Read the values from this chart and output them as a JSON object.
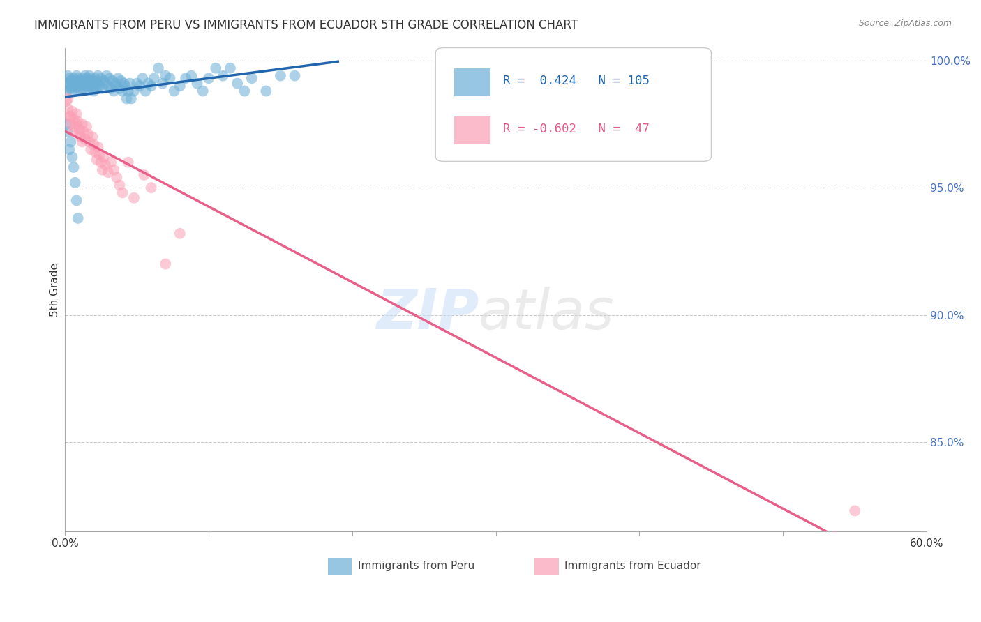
{
  "title": "IMMIGRANTS FROM PERU VS IMMIGRANTS FROM ECUADOR 5TH GRADE CORRELATION CHART",
  "source": "Source: ZipAtlas.com",
  "ylabel": "5th Grade",
  "xlim": [
    0.0,
    0.6
  ],
  "ylim": [
    0.815,
    1.005
  ],
  "peru_R": 0.424,
  "peru_N": 105,
  "ecuador_R": -0.602,
  "ecuador_N": 47,
  "peru_color": "#6baed6",
  "ecuador_color": "#fa9fb5",
  "peru_line_color": "#2166ac",
  "ecuador_line_color": "#e8608a",
  "grid_color": "#cccccc",
  "peru_x": [
    0.001,
    0.002,
    0.002,
    0.003,
    0.003,
    0.004,
    0.004,
    0.005,
    0.005,
    0.006,
    0.006,
    0.007,
    0.007,
    0.008,
    0.008,
    0.009,
    0.009,
    0.01,
    0.01,
    0.011,
    0.011,
    0.012,
    0.012,
    0.013,
    0.013,
    0.014,
    0.014,
    0.015,
    0.015,
    0.016,
    0.016,
    0.017,
    0.017,
    0.018,
    0.018,
    0.019,
    0.019,
    0.02,
    0.02,
    0.021,
    0.021,
    0.022,
    0.022,
    0.023,
    0.023,
    0.024,
    0.025,
    0.026,
    0.027,
    0.028,
    0.029,
    0.03,
    0.031,
    0.032,
    0.033,
    0.034,
    0.035,
    0.036,
    0.037,
    0.038,
    0.039,
    0.04,
    0.041,
    0.042,
    0.043,
    0.044,
    0.045,
    0.046,
    0.048,
    0.05,
    0.052,
    0.054,
    0.056,
    0.058,
    0.06,
    0.062,
    0.065,
    0.068,
    0.07,
    0.073,
    0.076,
    0.08,
    0.084,
    0.088,
    0.092,
    0.096,
    0.1,
    0.105,
    0.11,
    0.115,
    0.12,
    0.125,
    0.13,
    0.14,
    0.15,
    0.16,
    0.001,
    0.002,
    0.003,
    0.004,
    0.005,
    0.006,
    0.007,
    0.008,
    0.009
  ],
  "peru_y": [
    0.988,
    0.991,
    0.994,
    0.99,
    0.993,
    0.989,
    0.992,
    0.988,
    0.991,
    0.99,
    0.993,
    0.989,
    0.992,
    0.991,
    0.994,
    0.99,
    0.993,
    0.989,
    0.992,
    0.988,
    0.991,
    0.99,
    0.993,
    0.989,
    0.992,
    0.991,
    0.994,
    0.99,
    0.993,
    0.989,
    0.992,
    0.991,
    0.994,
    0.99,
    0.993,
    0.989,
    0.992,
    0.988,
    0.991,
    0.99,
    0.993,
    0.989,
    0.992,
    0.991,
    0.994,
    0.99,
    0.993,
    0.989,
    0.992,
    0.991,
    0.994,
    0.99,
    0.993,
    0.989,
    0.992,
    0.988,
    0.991,
    0.99,
    0.993,
    0.989,
    0.992,
    0.988,
    0.991,
    0.99,
    0.985,
    0.988,
    0.991,
    0.985,
    0.988,
    0.991,
    0.99,
    0.993,
    0.988,
    0.991,
    0.99,
    0.993,
    0.997,
    0.991,
    0.994,
    0.993,
    0.988,
    0.99,
    0.993,
    0.994,
    0.991,
    0.988,
    0.993,
    0.997,
    0.994,
    0.997,
    0.991,
    0.988,
    0.993,
    0.988,
    0.994,
    0.994,
    0.975,
    0.972,
    0.965,
    0.968,
    0.962,
    0.958,
    0.952,
    0.945,
    0.938
  ],
  "ecuador_x": [
    0.001,
    0.002,
    0.003,
    0.004,
    0.005,
    0.006,
    0.007,
    0.008,
    0.009,
    0.01,
    0.011,
    0.012,
    0.013,
    0.014,
    0.015,
    0.016,
    0.017,
    0.018,
    0.019,
    0.02,
    0.021,
    0.022,
    0.023,
    0.024,
    0.025,
    0.026,
    0.027,
    0.028,
    0.03,
    0.032,
    0.034,
    0.036,
    0.038,
    0.04,
    0.044,
    0.048,
    0.055,
    0.06,
    0.07,
    0.08,
    0.002,
    0.004,
    0.006,
    0.008,
    0.01,
    0.012,
    0.55
  ],
  "ecuador_y": [
    0.984,
    0.981,
    0.978,
    0.975,
    0.98,
    0.977,
    0.974,
    0.979,
    0.976,
    0.973,
    0.97,
    0.975,
    0.972,
    0.969,
    0.974,
    0.971,
    0.968,
    0.965,
    0.97,
    0.967,
    0.964,
    0.961,
    0.966,
    0.963,
    0.96,
    0.957,
    0.962,
    0.959,
    0.956,
    0.96,
    0.957,
    0.954,
    0.951,
    0.948,
    0.96,
    0.946,
    0.955,
    0.95,
    0.92,
    0.932,
    0.985,
    0.978,
    0.972,
    0.975,
    0.971,
    0.968,
    0.823
  ]
}
